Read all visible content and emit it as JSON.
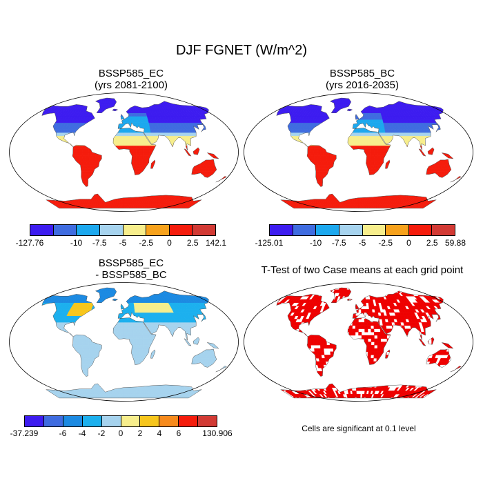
{
  "title": "DJF FGNET (W/m^2)",
  "colors": {
    "palette": [
      "#3d1cf0",
      "#3f6ce0",
      "#1ca8ee",
      "#a6d3ee",
      "#f7ee8c",
      "#f7a21c",
      "#f51c0c",
      "#d23a34"
    ],
    "palette_diff": [
      "#3d1cf0",
      "#3f6ce0",
      "#1c8ae2",
      "#1cb0ee",
      "#a6d3ee",
      "#f7ee8c",
      "#f7c61c",
      "#f78a1c",
      "#f51c0c",
      "#d23a34"
    ],
    "sig": "#ee0000",
    "land_border": "#555555",
    "ocean": "#ffffff"
  },
  "panels": [
    {
      "id": "ec",
      "title1": "BSSP585_EC",
      "title2": "(yrs 2081-2100)",
      "colorbar": {
        "labels": [
          "-127.76",
          "-10",
          "-7.5",
          "-5",
          "-2.5",
          "0",
          "2.5",
          "142.1"
        ],
        "levels": [
          -10,
          -7.5,
          -5,
          -2.5,
          0,
          2.5
        ]
      }
    },
    {
      "id": "bc",
      "title1": "BSSP585_BC",
      "title2": "(yrs 2016-2035)",
      "colorbar": {
        "labels": [
          "-125.01",
          "-10",
          "-7.5",
          "-5",
          "-2.5",
          "0",
          "2.5",
          "59.88"
        ],
        "levels": [
          -10,
          -7.5,
          -5,
          -2.5,
          0,
          2.5
        ]
      }
    },
    {
      "id": "diff",
      "title1": "BSSP585_EC",
      "title2": "- BSSP585_BC",
      "colorbar": {
        "labels": [
          "-37.239",
          "-6",
          "-4",
          "-2",
          "0",
          "2",
          "4",
          "6",
          "130.906"
        ],
        "levels": [
          -6,
          -4,
          -2,
          0,
          2,
          4,
          6
        ]
      }
    },
    {
      "id": "ttest",
      "title1": "T-Test of two Case means at each grid point",
      "note": "Cells are significant at 0.1 level"
    }
  ]
}
